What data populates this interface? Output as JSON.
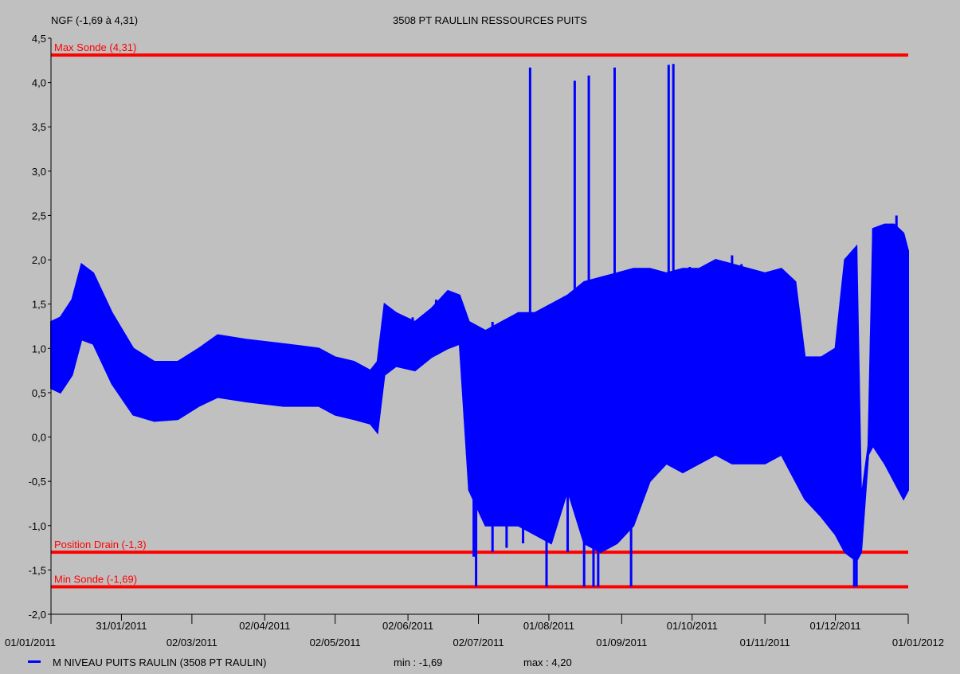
{
  "chart_data": {
    "type": "line",
    "title": "3508 PT RAULLIN RESSOURCES PUITS",
    "ylabel": "NGF (-1,69 à 4,31)",
    "ylim": [
      -2.0,
      4.5
    ],
    "yticks": [
      "4,5",
      "4,0",
      "3,5",
      "3,0",
      "2,5",
      "2,0",
      "1,5",
      "1,0",
      "0,5",
      "0,0",
      "-0,5",
      "-1,0",
      "-1,5",
      "-2,0"
    ],
    "ytick_values": [
      4.5,
      4.0,
      3.5,
      3.0,
      2.5,
      2.0,
      1.5,
      1.0,
      0.5,
      0.0,
      -0.5,
      -1.0,
      -1.5,
      -2.0
    ],
    "xlim": [
      "2011-01-01",
      "2012-01-01"
    ],
    "xticks_upper": [
      {
        "date": "2011-01-31",
        "label": "31/01/2011"
      },
      {
        "date": "2011-04-02",
        "label": "02/04/2011"
      },
      {
        "date": "2011-06-02",
        "label": "02/06/2011"
      },
      {
        "date": "2011-08-01",
        "label": "01/08/2011"
      },
      {
        "date": "2011-10-01",
        "label": "01/10/2011"
      },
      {
        "date": "2011-12-01",
        "label": "01/12/2011"
      }
    ],
    "xticks_lower": [
      {
        "date": "2011-01-01",
        "label": "01/01/2011"
      },
      {
        "date": "2011-03-02",
        "label": "02/03/2011"
      },
      {
        "date": "2011-05-02",
        "label": "02/05/2011"
      },
      {
        "date": "2011-07-02",
        "label": "02/07/2011"
      },
      {
        "date": "2011-09-01",
        "label": "01/09/2011"
      },
      {
        "date": "2011-11-01",
        "label": "01/11/2011"
      },
      {
        "date": "2012-01-01",
        "label": "01/01/2012"
      }
    ],
    "reference_lines": [
      {
        "label": "Max Sonde (4,31)",
        "value": 4.31,
        "color": "#ff0000"
      },
      {
        "label": "Position Drain (-1,3)",
        "value": -1.3,
        "color": "#ff0000"
      },
      {
        "label": "Min Sonde (-1,69)",
        "value": -1.69,
        "color": "#ff0000"
      }
    ],
    "series": [
      {
        "name": "M NIVEAU PUITS RAULIN (3508 PT RAULIN)",
        "color": "#0000ff",
        "min_label": "min : -1,69",
        "max_label": "max : 4,20",
        "band": [
          {
            "date": "2011-01-01",
            "low": 0.55,
            "high": 1.3
          },
          {
            "date": "2011-01-05",
            "low": 0.5,
            "high": 1.35
          },
          {
            "date": "2011-01-10",
            "low": 0.7,
            "high": 1.55
          },
          {
            "date": "2011-01-14",
            "low": 1.1,
            "high": 1.95
          },
          {
            "date": "2011-01-19",
            "low": 1.05,
            "high": 1.85
          },
          {
            "date": "2011-01-27",
            "low": 0.6,
            "high": 1.4
          },
          {
            "date": "2011-02-05",
            "low": 0.25,
            "high": 1.0
          },
          {
            "date": "2011-02-14",
            "low": 0.18,
            "high": 0.85
          },
          {
            "date": "2011-02-24",
            "low": 0.2,
            "high": 0.85
          },
          {
            "date": "2011-03-05",
            "low": 0.35,
            "high": 1.0
          },
          {
            "date": "2011-03-13",
            "low": 0.45,
            "high": 1.15
          },
          {
            "date": "2011-03-25",
            "low": 0.4,
            "high": 1.1
          },
          {
            "date": "2011-04-10",
            "low": 0.35,
            "high": 1.05
          },
          {
            "date": "2011-04-25",
            "low": 0.35,
            "high": 1.0
          },
          {
            "date": "2011-05-02",
            "low": 0.25,
            "high": 0.9
          },
          {
            "date": "2011-05-10",
            "low": 0.2,
            "high": 0.85
          },
          {
            "date": "2011-05-17",
            "low": 0.15,
            "high": 0.75
          },
          {
            "date": "2011-05-20",
            "low": 0.05,
            "high": 0.85
          },
          {
            "date": "2011-05-23",
            "low": 0.7,
            "high": 1.5
          },
          {
            "date": "2011-05-28",
            "low": 0.8,
            "high": 1.4
          },
          {
            "date": "2011-06-05",
            "low": 0.75,
            "high": 1.3
          },
          {
            "date": "2011-06-12",
            "low": 0.9,
            "high": 1.45
          },
          {
            "date": "2011-06-19",
            "low": 1.0,
            "high": 1.65
          },
          {
            "date": "2011-06-24",
            "low": 1.05,
            "high": 1.6
          },
          {
            "date": "2011-06-28",
            "low": -0.6,
            "high": 1.3
          },
          {
            "date": "2011-07-05",
            "low": -1.0,
            "high": 1.2
          },
          {
            "date": "2011-07-12",
            "low": -1.0,
            "high": 1.3
          },
          {
            "date": "2011-07-19",
            "low": -1.0,
            "high": 1.4
          },
          {
            "date": "2011-07-26",
            "low": -1.1,
            "high": 1.4
          },
          {
            "date": "2011-08-02",
            "low": -1.2,
            "high": 1.5
          },
          {
            "date": "2011-08-09",
            "low": -0.6,
            "high": 1.6
          },
          {
            "date": "2011-08-16",
            "low": -1.2,
            "high": 1.75
          },
          {
            "date": "2011-08-23",
            "low": -1.3,
            "high": 1.8
          },
          {
            "date": "2011-08-30",
            "low": -1.2,
            "high": 1.85
          },
          {
            "date": "2011-09-06",
            "low": -1.0,
            "high": 1.9
          },
          {
            "date": "2011-09-13",
            "low": -0.5,
            "high": 1.9
          },
          {
            "date": "2011-09-20",
            "low": -0.3,
            "high": 1.85
          },
          {
            "date": "2011-09-27",
            "low": -0.4,
            "high": 1.9
          },
          {
            "date": "2011-10-04",
            "low": -0.3,
            "high": 1.9
          },
          {
            "date": "2011-10-11",
            "low": -0.2,
            "high": 2.0
          },
          {
            "date": "2011-10-18",
            "low": -0.3,
            "high": 1.95
          },
          {
            "date": "2011-10-25",
            "low": -0.3,
            "high": 1.9
          },
          {
            "date": "2011-11-01",
            "low": -0.3,
            "high": 1.85
          },
          {
            "date": "2011-11-08",
            "low": -0.2,
            "high": 1.9
          },
          {
            "date": "2011-11-14",
            "low": -0.5,
            "high": 1.75
          },
          {
            "date": "2011-11-18",
            "low": -0.7,
            "high": 0.9
          },
          {
            "date": "2011-11-25",
            "low": -0.9,
            "high": 0.9
          },
          {
            "date": "2011-12-01",
            "low": -1.1,
            "high": 1.0
          },
          {
            "date": "2011-12-05",
            "low": -1.3,
            "high": 2.0
          },
          {
            "date": "2011-12-10",
            "low": -1.4,
            "high": 2.15
          },
          {
            "date": "2011-12-12",
            "low": -1.3,
            "high": -0.7
          },
          {
            "date": "2011-12-15",
            "low": -0.2,
            "high": -0.1
          },
          {
            "date": "2011-12-17",
            "low": -0.1,
            "high": 2.35
          },
          {
            "date": "2011-12-22",
            "low": -0.3,
            "high": 2.4
          },
          {
            "date": "2011-12-26",
            "low": -0.5,
            "high": 2.4
          },
          {
            "date": "2011-12-30",
            "low": -0.7,
            "high": 2.3
          },
          {
            "date": "2012-01-01",
            "low": -0.6,
            "high": 2.1
          }
        ],
        "spikes": [
          {
            "date": "2011-06-04",
            "high": 1.35
          },
          {
            "date": "2011-06-14",
            "high": 1.55
          },
          {
            "date": "2011-06-30",
            "low": -1.35,
            "high": 1.2
          },
          {
            "date": "2011-07-01",
            "low": -1.69,
            "high": 1.1
          },
          {
            "date": "2011-07-08",
            "low": -1.3,
            "high": 1.3
          },
          {
            "date": "2011-07-14",
            "low": -1.25,
            "high": 1.3
          },
          {
            "date": "2011-07-21",
            "low": -1.2,
            "high": 1.35
          },
          {
            "date": "2011-07-24",
            "high": 4.17
          },
          {
            "date": "2011-07-31",
            "low": -1.69,
            "high": 1.4
          },
          {
            "date": "2011-08-09",
            "low": -1.3,
            "high": 1.5
          },
          {
            "date": "2011-08-12",
            "high": 4.02
          },
          {
            "date": "2011-08-16",
            "low": -1.69,
            "high": 1.6
          },
          {
            "date": "2011-08-18",
            "high": 4.08
          },
          {
            "date": "2011-08-20",
            "low": -1.69,
            "high": 1.7
          },
          {
            "date": "2011-08-22",
            "low": -1.69,
            "high": 1.75
          },
          {
            "date": "2011-08-29",
            "high": 4.17
          },
          {
            "date": "2011-09-05",
            "low": -1.69,
            "high": 1.8
          },
          {
            "date": "2011-09-21",
            "high": 4.2
          },
          {
            "date": "2011-09-23",
            "high": 4.21
          },
          {
            "date": "2011-09-30",
            "high": 1.92
          },
          {
            "date": "2011-10-18",
            "high": 2.05
          },
          {
            "date": "2011-10-22",
            "high": 1.95
          },
          {
            "date": "2011-12-09",
            "low": -1.69,
            "high": 0.2
          },
          {
            "date": "2011-12-10",
            "low": -1.69,
            "high": 0.0
          },
          {
            "date": "2011-12-27",
            "high": 2.5
          }
        ]
      }
    ]
  }
}
